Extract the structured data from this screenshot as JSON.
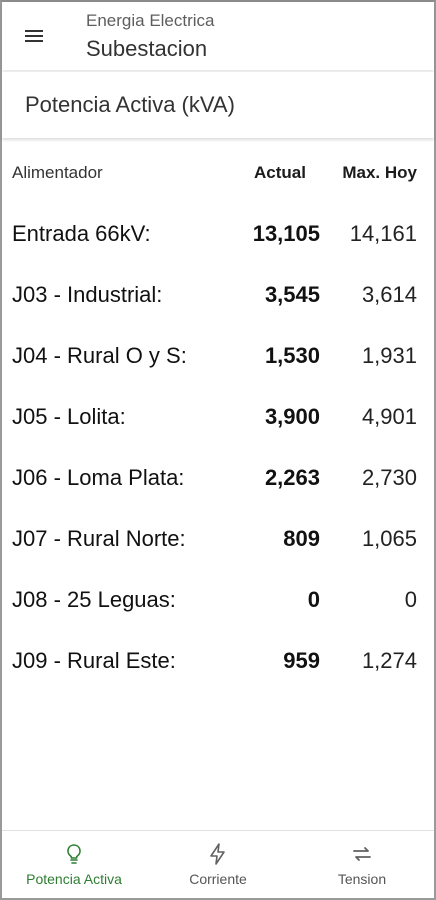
{
  "appbar": {
    "subtitle": "Energia Electrica",
    "title": "Subestacion",
    "menu_icon": "menu-icon"
  },
  "section": {
    "title": "Potencia Activa (kVA)"
  },
  "table": {
    "headers": [
      "Alimentador",
      "Actual",
      "Max. Hoy"
    ],
    "rows": [
      {
        "name": "Entrada 66kV:",
        "actual": "13,105",
        "max": "14,161"
      },
      {
        "name": "J03 - Industrial:",
        "actual": "3,545",
        "max": "3,614"
      },
      {
        "name": "J04 - Rural O y S:",
        "actual": "1,530",
        "max": "1,931"
      },
      {
        "name": "J05 - Lolita:",
        "actual": "3,900",
        "max": "4,901"
      },
      {
        "name": "J06 - Loma Plata:",
        "actual": "2,263",
        "max": "2,730"
      },
      {
        "name": "J07 - Rural Norte:",
        "actual": "809",
        "max": "1,065"
      },
      {
        "name": "J08 - 25 Leguas:",
        "actual": "0",
        "max": "0"
      },
      {
        "name": "J09 - Rural Este:",
        "actual": "959",
        "max": "1,274"
      }
    ]
  },
  "bottomnav": {
    "items": [
      {
        "label": "Potencia Activa",
        "icon": "lightbulb-icon",
        "active": true
      },
      {
        "label": "Corriente",
        "icon": "lightning-icon",
        "active": false
      },
      {
        "label": "Tension",
        "icon": "swap-arrows-icon",
        "active": false
      }
    ]
  },
  "colors": {
    "accent": "#2e7d32",
    "icon_gray": "#616161"
  }
}
